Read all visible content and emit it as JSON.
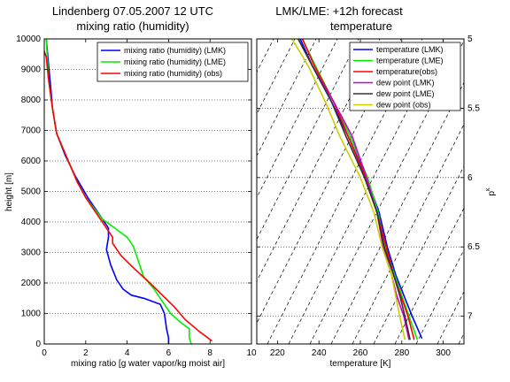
{
  "header": {
    "left_title_line1": "Lindenberg 07.05.2007  12 UTC",
    "right_title_line1": "LMK/LME: +12h forecast"
  },
  "chart_data": [
    {
      "type": "line",
      "title": "mixing ratio (humidity)",
      "xlabel": "mixing ratio [g water vapor/kg moist air]",
      "ylabel": "height [m]",
      "xlim": [
        0,
        10
      ],
      "ylim": [
        0,
        10000
      ],
      "xticks": [
        "0",
        "2",
        "4",
        "6",
        "8",
        "10"
      ],
      "yticks": [
        "0",
        "1000",
        "2000",
        "3000",
        "4000",
        "5000",
        "6000",
        "7000",
        "8000",
        "9000",
        "10000"
      ],
      "grid": "horizontal dotted",
      "legend_position": "top-right",
      "colors": {
        "LMK": "#0000ff",
        "LME": "#00ee00",
        "obs": "#ff0000"
      },
      "series": [
        {
          "name": "mixing ratio (humidity) (LMK)",
          "color": "#0000ff",
          "points": [
            [
              6.0,
              0
            ],
            [
              6.0,
              200
            ],
            [
              5.9,
              500
            ],
            [
              5.8,
              1000
            ],
            [
              5.6,
              1300
            ],
            [
              4.8,
              1500
            ],
            [
              4.2,
              1600
            ],
            [
              3.8,
              1800
            ],
            [
              3.5,
              2100
            ],
            [
              3.2,
              2600
            ],
            [
              3.0,
              3100
            ],
            [
              3.1,
              3500
            ],
            [
              3.1,
              3800
            ],
            [
              2.7,
              4200
            ],
            [
              2.1,
              4800
            ],
            [
              1.5,
              5500
            ],
            [
              1.0,
              6200
            ],
            [
              0.6,
              6900
            ],
            [
              0.4,
              7700
            ],
            [
              0.3,
              8500
            ],
            [
              0.2,
              9200
            ],
            [
              0.1,
              10000
            ]
          ]
        },
        {
          "name": "mixing ratio (humidity) (LME)",
          "color": "#00ee00",
          "points": [
            [
              7.1,
              0
            ],
            [
              7.0,
              200
            ],
            [
              7.0,
              500
            ],
            [
              6.6,
              700
            ],
            [
              6.1,
              1000
            ],
            [
              5.6,
              1500
            ],
            [
              5.3,
              1800
            ],
            [
              4.8,
              2200
            ],
            [
              4.5,
              2800
            ],
            [
              4.3,
              3200
            ],
            [
              4.0,
              3500
            ],
            [
              3.4,
              3800
            ],
            [
              2.8,
              4100
            ],
            [
              2.0,
              4800
            ],
            [
              1.6,
              5300
            ],
            [
              1.1,
              6100
            ],
            [
              0.6,
              6900
            ],
            [
              0.4,
              7700
            ],
            [
              0.2,
              8700
            ],
            [
              0.1,
              10000
            ]
          ]
        },
        {
          "name": "mixing ratio (humidity) (obs)",
          "color": "#ff0000",
          "points": [
            [
              8.1,
              100
            ],
            [
              7.5,
              400
            ],
            [
              6.8,
              800
            ],
            [
              6.3,
              1200
            ],
            [
              5.7,
              1600
            ],
            [
              5.1,
              2000
            ],
            [
              4.3,
              2500
            ],
            [
              3.7,
              2900
            ],
            [
              3.3,
              3300
            ],
            [
              3.3,
              3500
            ],
            [
              3.0,
              3800
            ],
            [
              2.6,
              4200
            ],
            [
              2.0,
              4800
            ],
            [
              1.6,
              5300
            ],
            [
              1.1,
              6100
            ],
            [
              0.6,
              6900
            ],
            [
              0.4,
              7700
            ],
            [
              0.2,
              8700
            ],
            [
              0.1,
              9400
            ],
            [
              0.0,
              9600
            ]
          ]
        }
      ]
    },
    {
      "type": "line",
      "title": "temperature",
      "xlabel": "temperature [K]",
      "ylabel": "p^k",
      "xlim": [
        210,
        310
      ],
      "ylim": [
        7.2,
        5.0
      ],
      "xticks": [
        "220",
        "240",
        "260",
        "280",
        "300"
      ],
      "yticks": [
        "5",
        "5.5",
        "6",
        "6.5",
        "7"
      ],
      "grid": "horizontal dotted",
      "legend_position": "top-right",
      "colors": {
        "LMK": "#0000ff",
        "LME": "#00ee00",
        "obs": "#ff0000",
        "dew_LMK": "#cc00cc",
        "dew_LME": "#333333",
        "dew_obs": "#cccc00"
      },
      "series": [
        {
          "name": "temperature (LMK)",
          "color": "#0000ff",
          "points": [
            [
              289.7,
              7.16
            ],
            [
              285,
              7.0
            ],
            [
              281,
              6.85
            ],
            [
              277,
              6.7
            ],
            [
              273,
              6.5
            ],
            [
              269,
              6.25
            ],
            [
              263,
              6.0
            ],
            [
              254,
              5.7
            ],
            [
              246,
              5.45
            ],
            [
              237,
              5.2
            ],
            [
              231,
              5.0
            ]
          ]
        },
        {
          "name": "temperature (LME)",
          "color": "#00ee00",
          "points": [
            [
              287.5,
              7.17
            ],
            [
              283.5,
              7.0
            ],
            [
              280,
              6.85
            ],
            [
              276.5,
              6.7
            ],
            [
              272,
              6.5
            ],
            [
              268.5,
              6.25
            ],
            [
              263.5,
              6.0
            ],
            [
              255,
              5.7
            ],
            [
              247,
              5.45
            ],
            [
              238.5,
              5.2
            ],
            [
              232,
              5.0
            ]
          ]
        },
        {
          "name": "temperature(obs)",
          "color": "#ff0000",
          "points": [
            [
              286,
              7.17
            ],
            [
              283,
              7.0
            ],
            [
              279.5,
              6.85
            ],
            [
              276,
              6.7
            ],
            [
              272.5,
              6.5
            ],
            [
              268,
              6.25
            ],
            [
              262.5,
              6.0
            ],
            [
              254,
              5.7
            ],
            [
              247,
              5.45
            ],
            [
              238,
              5.2
            ],
            [
              232,
              5.0
            ]
          ]
        },
        {
          "name": "dew point (LMK)",
          "color": "#cc00cc",
          "points": [
            [
              283.5,
              7.17
            ],
            [
              281,
              7.0
            ],
            [
              277.5,
              6.85
            ],
            [
              275,
              6.7
            ],
            [
              271,
              6.5
            ],
            [
              268,
              6.25
            ],
            [
              263,
              6.0
            ],
            [
              256,
              5.7
            ],
            [
              247,
              5.45
            ],
            [
              237,
              5.2
            ],
            [
              230,
              5.0
            ]
          ]
        },
        {
          "name": "dew point (LME)",
          "color": "#333333",
          "points": [
            [
              284,
              7.17
            ],
            [
              281.5,
              7.0
            ],
            [
              279,
              6.85
            ],
            [
              276,
              6.7
            ],
            [
              271.5,
              6.5
            ],
            [
              268,
              6.25
            ],
            [
              262,
              6.0
            ],
            [
              253,
              5.7
            ],
            [
              246,
              5.45
            ],
            [
              237,
              5.2
            ],
            [
              230,
              5.0
            ]
          ]
        },
        {
          "name": "dew point (obs)",
          "color": "#cccc00",
          "points": [
            [
              281.5,
              7.17
            ],
            [
              279,
              7.0
            ],
            [
              277,
              6.85
            ],
            [
              275,
              6.7
            ],
            [
              270.5,
              6.5
            ],
            [
              266.5,
              6.25
            ],
            [
              260,
              6.0
            ],
            [
              250,
              5.7
            ],
            [
              243,
              5.45
            ],
            [
              235,
              5.2
            ],
            [
              227,
              5.0
            ]
          ]
        }
      ]
    }
  ]
}
